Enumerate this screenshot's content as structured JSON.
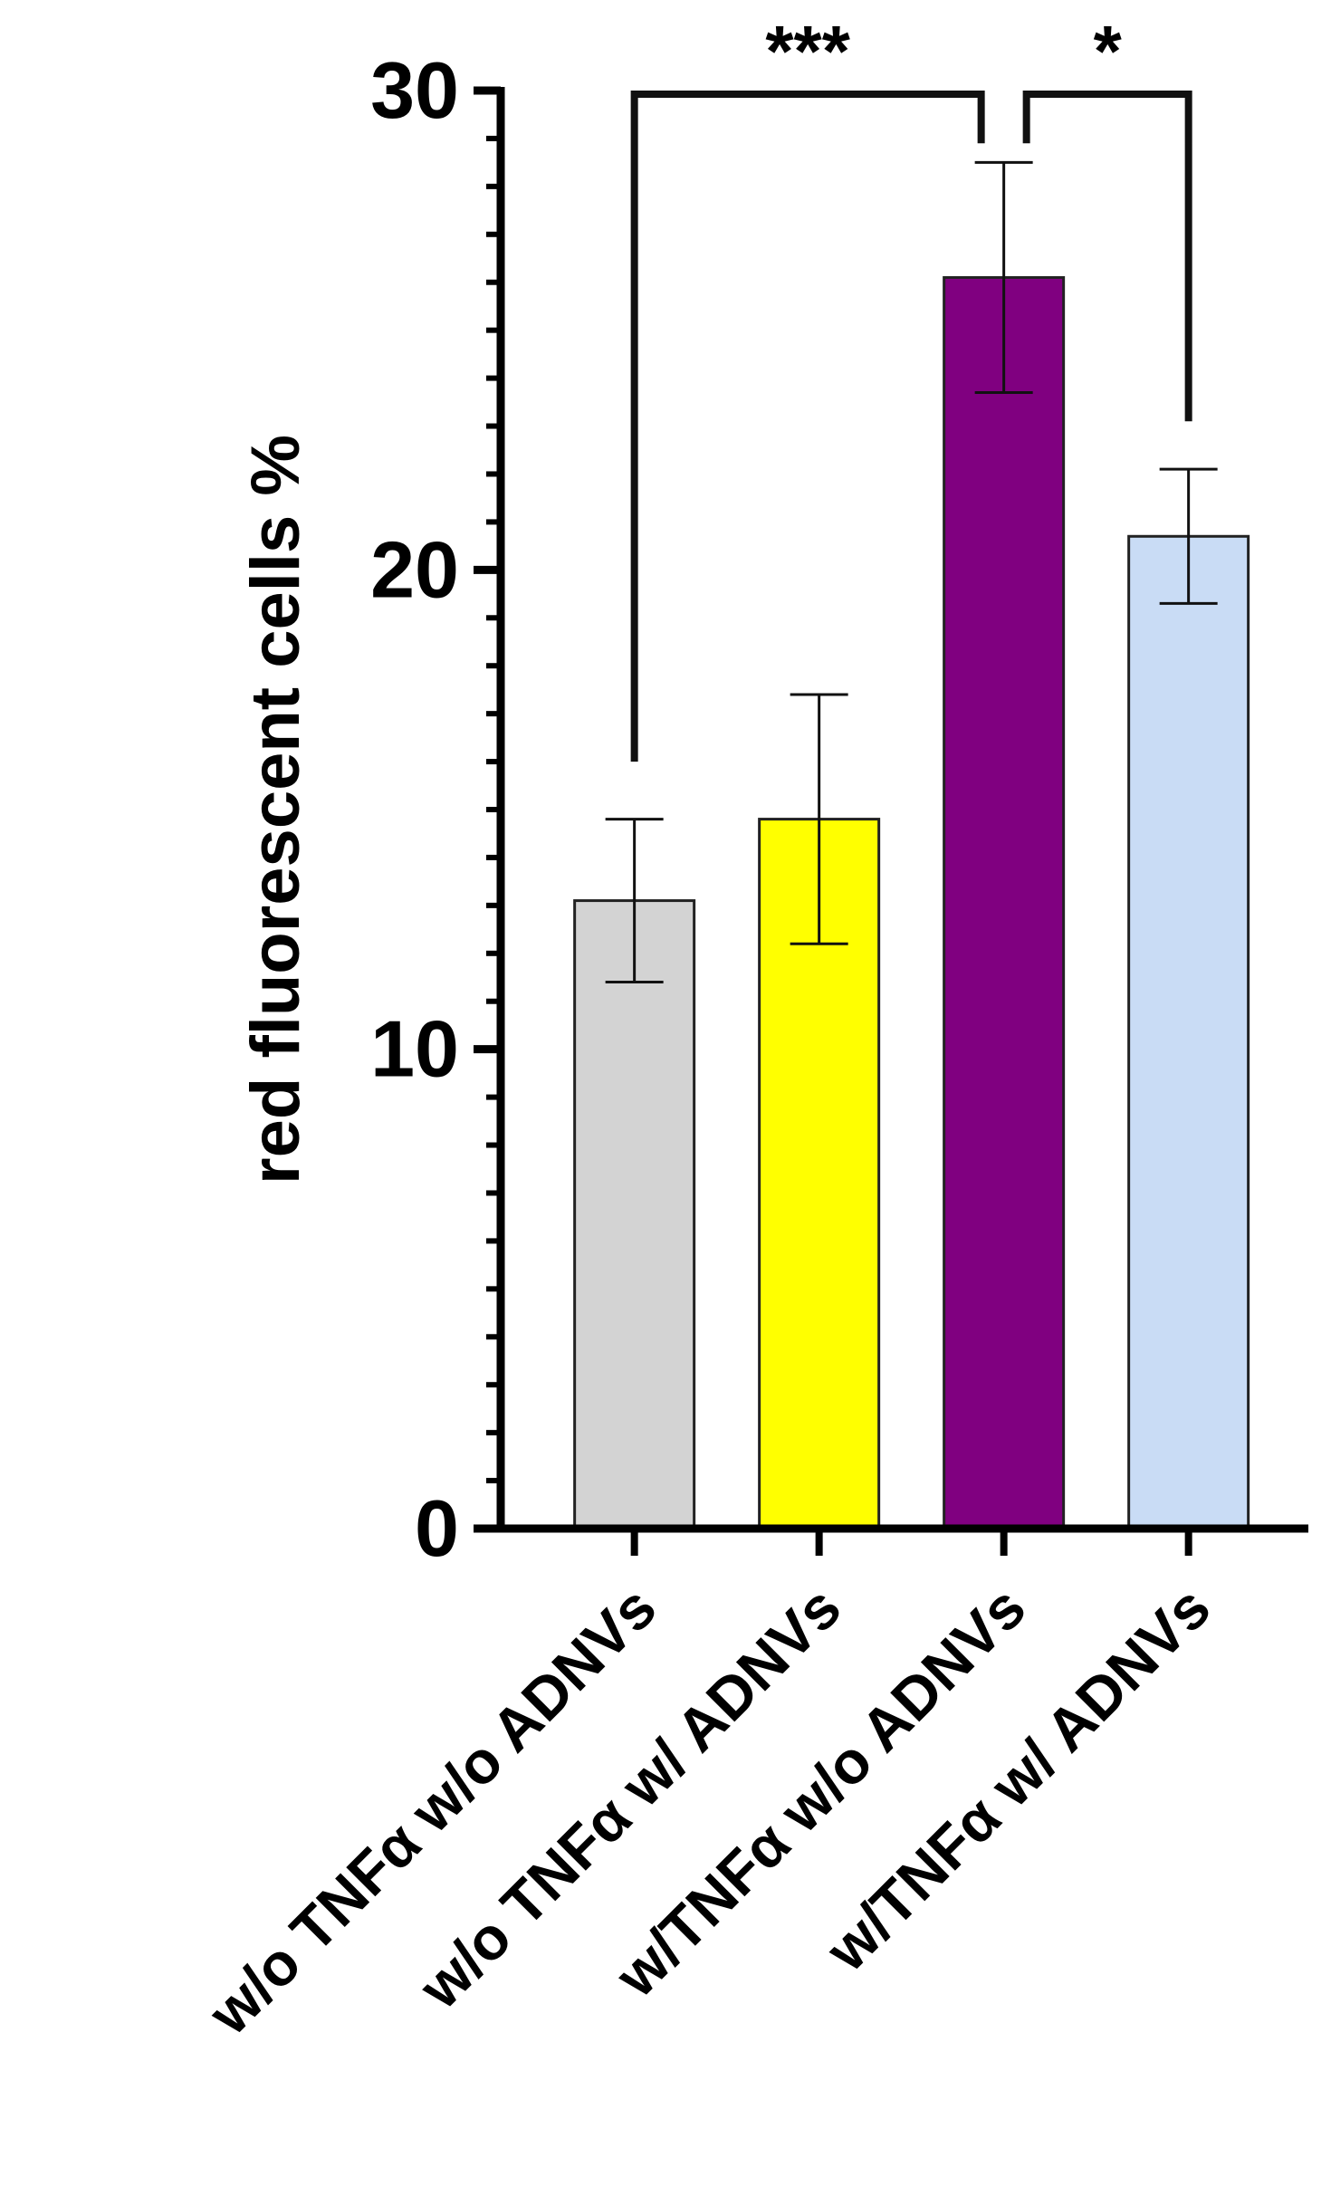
{
  "chart_data": {
    "type": "bar",
    "title": "",
    "xlabel": "",
    "ylabel": "red fluorescent cells %",
    "ylim": [
      0,
      30
    ],
    "yticks": [
      0,
      10,
      20,
      30
    ],
    "yminor_step": 1,
    "grid": false,
    "legend": "none",
    "categories": [
      "w/o TNFα w/o ADNVs",
      "w/o TNFα w/ ADNVs",
      "w/TNFα w/o ADNVs",
      "w/TNFα w/ ADNVs"
    ],
    "values": [
      13.1,
      14.8,
      26.1,
      20.7
    ],
    "error": [
      1.7,
      2.6,
      2.4,
      1.4
    ],
    "colors": [
      "#d3d3d3",
      "#ffff00",
      "#800080",
      "#c9dcf5"
    ],
    "significance": [
      {
        "from": 0,
        "to": 2,
        "label": "***"
      },
      {
        "from": 2,
        "to": 3,
        "label": "*"
      }
    ]
  }
}
